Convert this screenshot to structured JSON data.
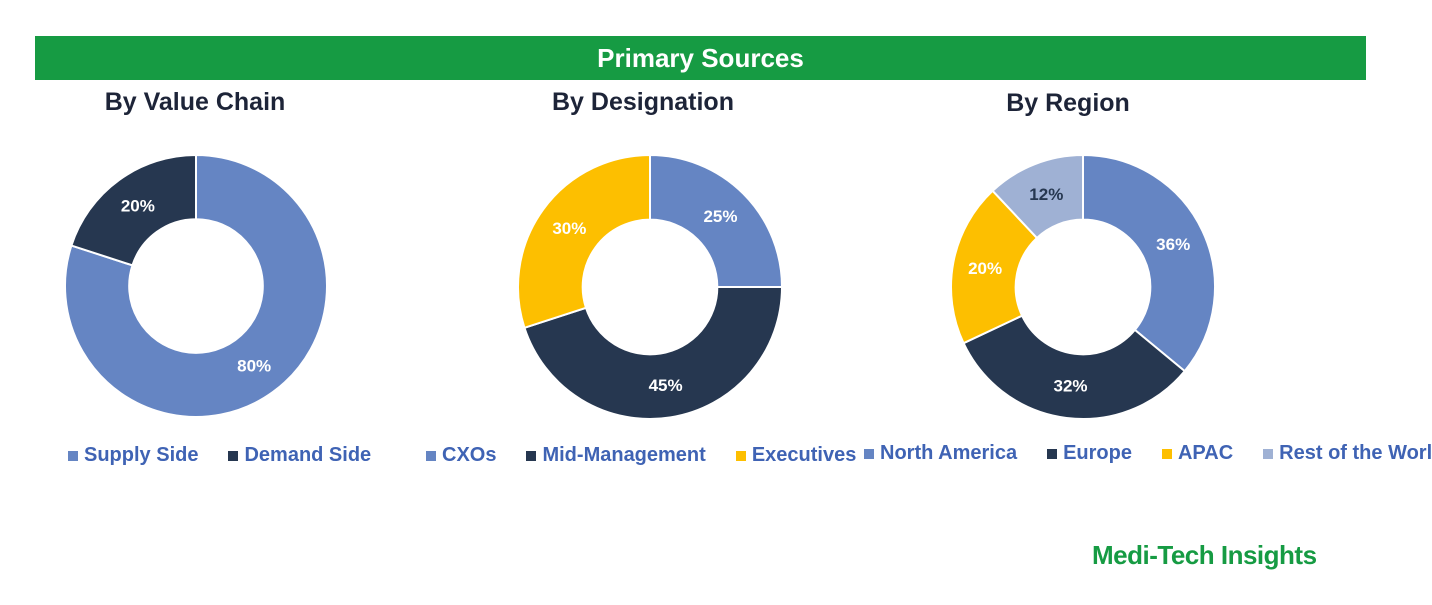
{
  "header": {
    "title": "Primary Sources"
  },
  "brand": {
    "name": "Medi-Tech Insights"
  },
  "chart_data": [
    {
      "type": "pie",
      "donut": true,
      "title": "By Value Chain",
      "categories": [
        "Supply Side",
        "Demand Side"
      ],
      "values": [
        80,
        20
      ],
      "labels": [
        "80%",
        "20%"
      ],
      "colors": [
        "#6585c3",
        "#263750"
      ],
      "label_colors": [
        "#ffffff",
        "#ffffff"
      ],
      "legend": "bottom"
    },
    {
      "type": "pie",
      "donut": true,
      "title": "By Designation",
      "categories": [
        "CXOs",
        "Mid-Management",
        "Executives"
      ],
      "values": [
        25,
        45,
        30
      ],
      "labels": [
        "25%",
        "45%",
        "30%"
      ],
      "colors": [
        "#6585c3",
        "#263750",
        "#fdbf00"
      ],
      "label_colors": [
        "#ffffff",
        "#ffffff",
        "#ffffff"
      ],
      "legend": "bottom"
    },
    {
      "type": "pie",
      "donut": true,
      "title": "By Region",
      "categories": [
        "North America",
        "Europe",
        "APAC",
        "Rest of the World"
      ],
      "values": [
        36,
        32,
        20,
        12
      ],
      "labels": [
        "36%",
        "32%",
        "20%",
        "12%"
      ],
      "colors": [
        "#6585c3",
        "#263750",
        "#fdbf00",
        "#9fb1d4"
      ],
      "label_colors": [
        "#ffffff",
        "#ffffff",
        "#ffffff",
        "#263750"
      ],
      "legend": "bottom"
    }
  ]
}
